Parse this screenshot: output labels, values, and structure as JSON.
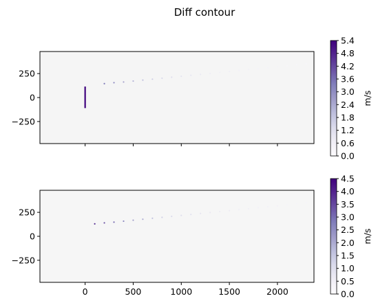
{
  "title": "Diff contour",
  "plots": [
    {
      "id": "top",
      "xlim": [
        -470,
        2380
      ],
      "ylim": [
        -480,
        480
      ],
      "yticks": [
        250,
        0,
        -250
      ],
      "ytick_labels": [
        "250",
        "0",
        "−250"
      ],
      "xticks": [
        0,
        500,
        1000,
        1500,
        2000
      ],
      "show_xtick_labels": false,
      "background_color": "#f5f5f5",
      "vertical_segment": {
        "x": 0,
        "y0": -110,
        "y1": 115,
        "color": "#3f007d"
      },
      "dots": [
        {
          "x": 200,
          "y": 145,
          "v": 3.4
        },
        {
          "x": 300,
          "y": 155,
          "v": 3.0
        },
        {
          "x": 400,
          "y": 162,
          "v": 2.5
        },
        {
          "x": 500,
          "y": 172,
          "v": 2.2
        },
        {
          "x": 600,
          "y": 182,
          "v": 1.9
        },
        {
          "x": 700,
          "y": 192,
          "v": 1.6
        },
        {
          "x": 800,
          "y": 202,
          "v": 1.4
        },
        {
          "x": 900,
          "y": 212,
          "v": 1.2
        },
        {
          "x": 1000,
          "y": 222,
          "v": 1.0
        },
        {
          "x": 1100,
          "y": 232,
          "v": 0.9
        },
        {
          "x": 1200,
          "y": 242,
          "v": 0.8
        },
        {
          "x": 1300,
          "y": 252,
          "v": 0.7
        },
        {
          "x": 1400,
          "y": 262,
          "v": 0.6
        },
        {
          "x": 1500,
          "y": 272,
          "v": 0.6
        },
        {
          "x": 1600,
          "y": 282,
          "v": 0.5
        },
        {
          "x": 1700,
          "y": 292,
          "v": 0.5
        },
        {
          "x": 1800,
          "y": 302,
          "v": 0.4
        },
        {
          "x": 1900,
          "y": 312,
          "v": 0.4
        },
        {
          "x": 2000,
          "y": 322,
          "v": 0.4
        },
        {
          "x": 2100,
          "y": 332,
          "v": 0.3
        },
        {
          "x": 2200,
          "y": 342,
          "v": 0.3
        },
        {
          "x": 2300,
          "y": 352,
          "v": 0.3
        }
      ],
      "colorbar": {
        "vmin": 0.0,
        "vmax": 5.4,
        "ticks": [
          "0.0",
          "0.6",
          "1.2",
          "1.8",
          "2.4",
          "3.0",
          "3.6",
          "4.2",
          "4.8",
          "5.4"
        ],
        "label": "m/s"
      }
    },
    {
      "id": "bottom",
      "xlim": [
        -470,
        2380
      ],
      "ylim": [
        -480,
        480
      ],
      "yticks": [
        250,
        0,
        -250
      ],
      "ytick_labels": [
        "250",
        "0",
        "−250"
      ],
      "xticks": [
        0,
        500,
        1000,
        1500,
        2000
      ],
      "xtick_labels": [
        "0",
        "500",
        "1000",
        "1500",
        "2000"
      ],
      "show_xtick_labels": true,
      "background_color": "#f6f6f6",
      "dots": [
        {
          "x": 100,
          "y": 130,
          "v": 3.8
        },
        {
          "x": 200,
          "y": 140,
          "v": 3.4
        },
        {
          "x": 300,
          "y": 148,
          "v": 3.0
        },
        {
          "x": 400,
          "y": 158,
          "v": 2.6
        },
        {
          "x": 500,
          "y": 168,
          "v": 2.2
        },
        {
          "x": 600,
          "y": 178,
          "v": 1.9
        },
        {
          "x": 700,
          "y": 188,
          "v": 1.6
        },
        {
          "x": 800,
          "y": 198,
          "v": 1.3
        },
        {
          "x": 900,
          "y": 208,
          "v": 1.1
        },
        {
          "x": 1000,
          "y": 218,
          "v": 1.0
        },
        {
          "x": 1100,
          "y": 228,
          "v": 0.9
        },
        {
          "x": 1200,
          "y": 238,
          "v": 0.8
        },
        {
          "x": 1300,
          "y": 248,
          "v": 0.7
        },
        {
          "x": 1400,
          "y": 258,
          "v": 0.6
        },
        {
          "x": 1500,
          "y": 268,
          "v": 0.6
        },
        {
          "x": 1600,
          "y": 278,
          "v": 0.5
        },
        {
          "x": 1700,
          "y": 288,
          "v": 0.5
        },
        {
          "x": 1800,
          "y": 298,
          "v": 0.4
        },
        {
          "x": 1900,
          "y": 308,
          "v": 0.4
        },
        {
          "x": 2000,
          "y": 318,
          "v": 0.4
        },
        {
          "x": 2100,
          "y": 328,
          "v": 0.3
        },
        {
          "x": 2200,
          "y": 340,
          "v": 0.3
        },
        {
          "x": 2300,
          "y": 350,
          "v": 0.3
        }
      ],
      "colorbar": {
        "vmin": 0.0,
        "vmax": 4.5,
        "ticks": [
          "0.0",
          "0.5",
          "1.0",
          "1.5",
          "2.0",
          "2.5",
          "3.0",
          "3.5",
          "4.0",
          "4.5"
        ],
        "label": "m/s"
      }
    }
  ],
  "chart_data": {
    "type": "heatmap",
    "title": "Diff contour",
    "panels": [
      {
        "xlim": [
          -470,
          2380
        ],
        "ylim": [
          -480,
          480
        ],
        "xticks": [
          0,
          500,
          1000,
          1500,
          2000
        ],
        "yticks": [
          -250,
          0,
          250
        ],
        "colorbar_range": [
          0.0,
          5.4
        ],
        "colorbar_label": "m/s",
        "features": "vertical segment at x=0 from y=-110 to y=115 (max value); diagonal dotted line from (200,145) to (2300,352) fading"
      },
      {
        "xlim": [
          -470,
          2380
        ],
        "ylim": [
          -480,
          480
        ],
        "xticks": [
          0,
          500,
          1000,
          1500,
          2000
        ],
        "yticks": [
          -250,
          0,
          250
        ],
        "colorbar_range": [
          0.0,
          4.5
        ],
        "colorbar_label": "m/s",
        "features": "diagonal dotted line from (100,130) to (2300,350) fading"
      }
    ],
    "colormap": "Purples"
  }
}
